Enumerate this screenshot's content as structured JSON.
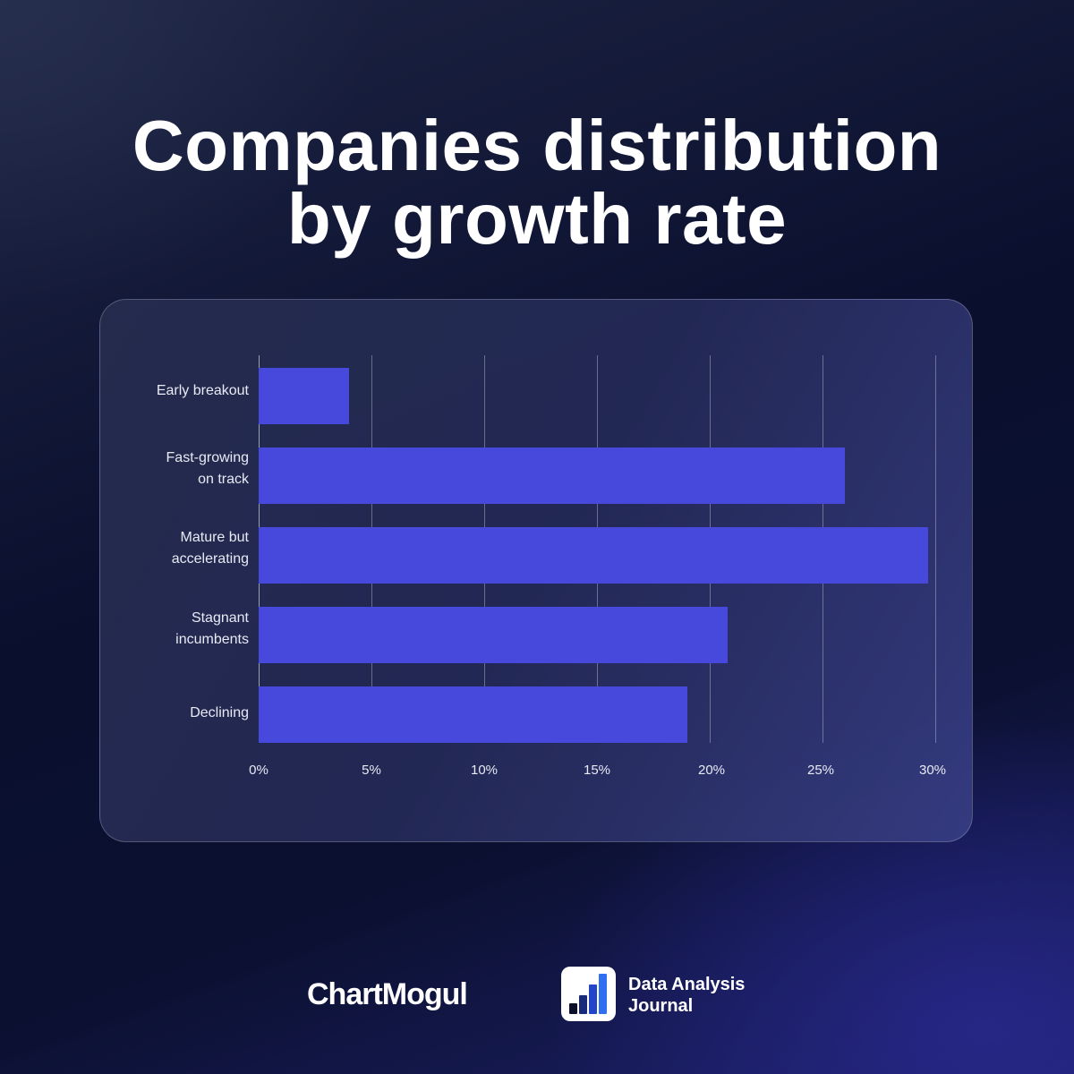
{
  "header": {
    "title_line1": "Companies distribution",
    "title_line2": "by growth rate"
  },
  "chart_data": {
    "type": "bar",
    "orientation": "horizontal",
    "title": "Companies distribution by growth rate",
    "xlabel": "",
    "ylabel": "",
    "categories": [
      "Early breakout",
      "Fast-growing on track",
      "Mature but accelerating",
      "Stagnant incumbents",
      "Declining"
    ],
    "values": [
      4.0,
      26.0,
      29.7,
      20.8,
      19.0
    ],
    "unit": "%",
    "xlim": [
      0,
      30
    ],
    "x_ticks": [
      "0%",
      "5%",
      "10%",
      "15%",
      "20%",
      "25%",
      "30%"
    ],
    "grid": true,
    "bar_color": "#4649dc",
    "legend": null
  },
  "labels": {
    "cat0_line1": "Early breakout",
    "cat1_line1": "Fast-growing",
    "cat1_line2": "on track",
    "cat2_line1": "Mature but",
    "cat2_line2": "accelerating",
    "cat3_line1": "Stagnant",
    "cat3_line2": "incumbents",
    "cat4_line1": "Declining"
  },
  "footer": {
    "brand1": "ChartMogul",
    "brand2_line1": "Data Analysis",
    "brand2_line2": "Journal",
    "brand2_icon": "bar-chart-icon",
    "brand2_icon_colors": [
      "#0b0f2a",
      "#1a2a7a",
      "#2346c8",
      "#2f6ff0"
    ]
  },
  "colors": {
    "bar": "#4649dc",
    "text": "#ffffff",
    "background_dark": "#0a0f2e"
  }
}
